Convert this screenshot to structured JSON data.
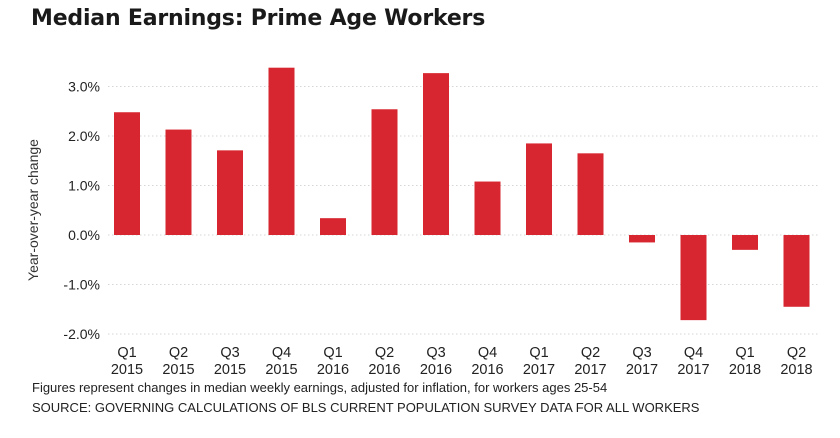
{
  "title": "Median Earnings: Prime Age Workers",
  "footnote": "Figures represent changes in median weekly earnings, adjusted for inflation, for workers ages 25-54",
  "source": "SOURCE: GOVERNING CALCULATIONS OF BLS CURRENT POPULATION SURVEY DATA FOR ALL WORKERS",
  "colors": {
    "bar": "#d7262f",
    "grid": "#d6d6d6"
  },
  "chart_data": {
    "type": "bar",
    "title": "Median Earnings: Prime Age Workers",
    "xlabel": "",
    "ylabel": "Year-over-year change",
    "ylim": [
      -2.0,
      3.5
    ],
    "yticks": [
      -2.0,
      -1.0,
      0.0,
      1.0,
      2.0,
      3.0
    ],
    "ytick_labels": [
      "-2.0%",
      "-1.0%",
      "0.0%",
      "1.0%",
      "2.0%",
      "3.0%"
    ],
    "grid": true,
    "legend": "none",
    "categories": [
      {
        "quarter": "Q1",
        "year": "2015"
      },
      {
        "quarter": "Q2",
        "year": "2015"
      },
      {
        "quarter": "Q3",
        "year": "2015"
      },
      {
        "quarter": "Q4",
        "year": "2015"
      },
      {
        "quarter": "Q1",
        "year": "2016"
      },
      {
        "quarter": "Q2",
        "year": "2016"
      },
      {
        "quarter": "Q3",
        "year": "2016"
      },
      {
        "quarter": "Q4",
        "year": "2016"
      },
      {
        "quarter": "Q1",
        "year": "2017"
      },
      {
        "quarter": "Q2",
        "year": "2017"
      },
      {
        "quarter": "Q3",
        "year": "2017"
      },
      {
        "quarter": "Q4",
        "year": "2017"
      },
      {
        "quarter": "Q1",
        "year": "2018"
      },
      {
        "quarter": "Q2",
        "year": "2018"
      }
    ],
    "values": [
      2.48,
      2.13,
      1.71,
      3.38,
      0.34,
      2.54,
      3.27,
      1.08,
      1.85,
      1.65,
      -0.15,
      -1.72,
      -0.3,
      -1.45
    ]
  }
}
